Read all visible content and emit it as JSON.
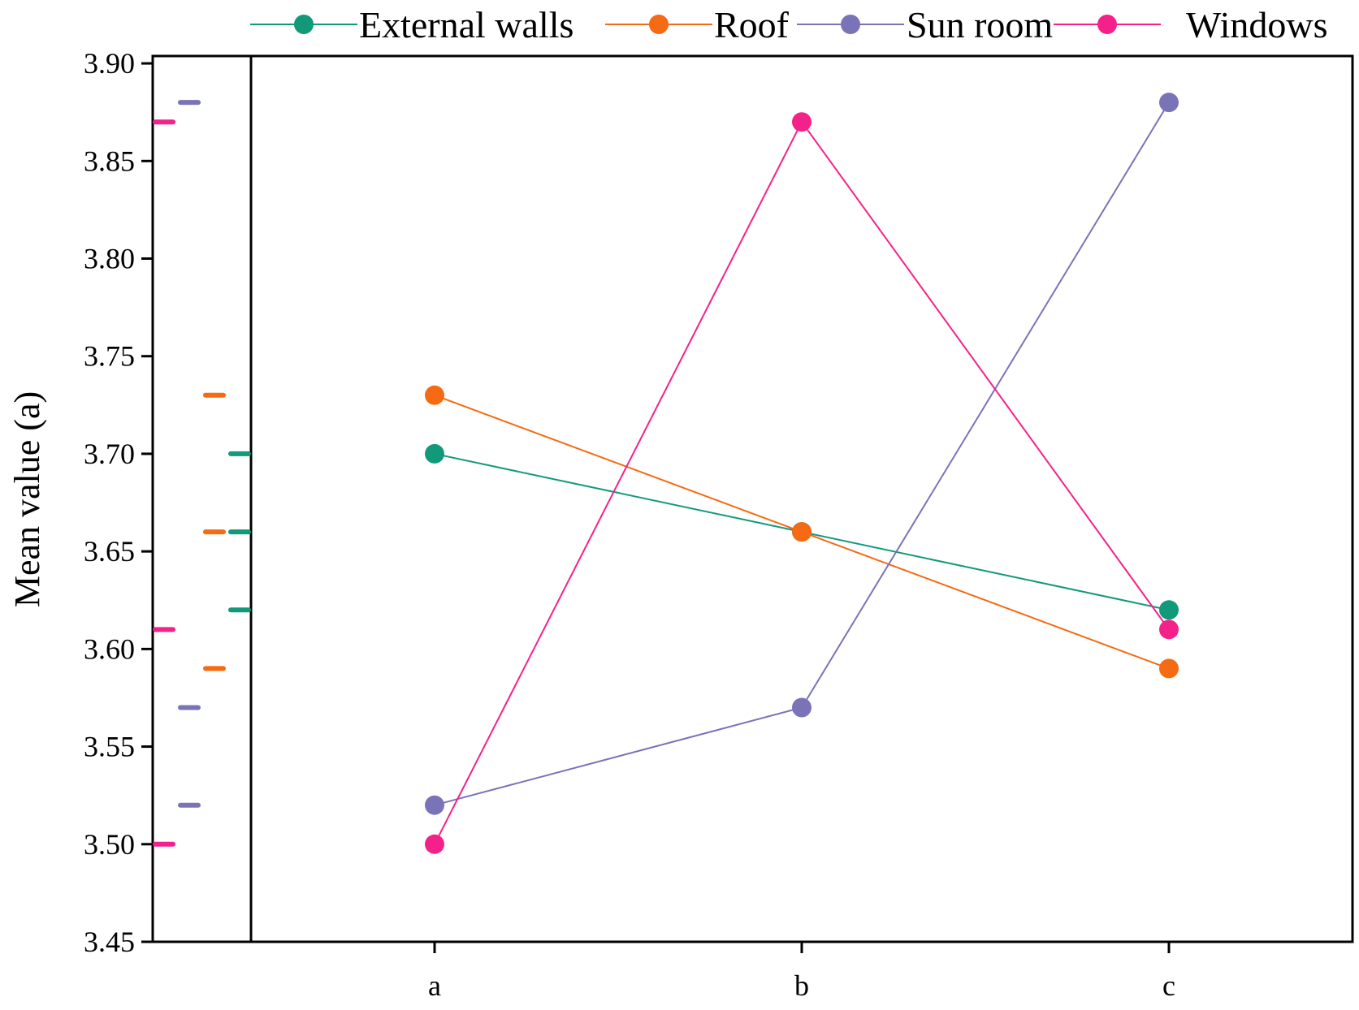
{
  "chart_data": {
    "type": "line",
    "title": "",
    "xlabel": "",
    "ylabel": "Mean value (a)",
    "categories": [
      "a",
      "b",
      "c"
    ],
    "ylim": [
      3.45,
      3.92
    ],
    "yticks": [
      3.45,
      3.5,
      3.55,
      3.6,
      3.65,
      3.7,
      3.75,
      3.8,
      3.85,
      3.9
    ],
    "ytick_labels": [
      "3.45",
      "3.50",
      "3.55",
      "3.60",
      "3.65",
      "3.70",
      "3.75",
      "3.80",
      "3.85",
      "3.90"
    ],
    "legend_position": "top",
    "side_panel": "rug of series values by series, left of main plot",
    "series": [
      {
        "name": "External walls",
        "color": "#12997a",
        "values": [
          3.7,
          3.66,
          3.62
        ]
      },
      {
        "name": "Roof",
        "color": "#f56a12",
        "values": [
          3.73,
          3.66,
          3.59
        ]
      },
      {
        "name": "Sun room",
        "color": "#7b73b8",
        "values": [
          3.52,
          3.57,
          3.88
        ]
      },
      {
        "name": "Windows",
        "color": "#f5218a",
        "values": [
          3.5,
          3.87,
          3.61
        ]
      }
    ]
  }
}
